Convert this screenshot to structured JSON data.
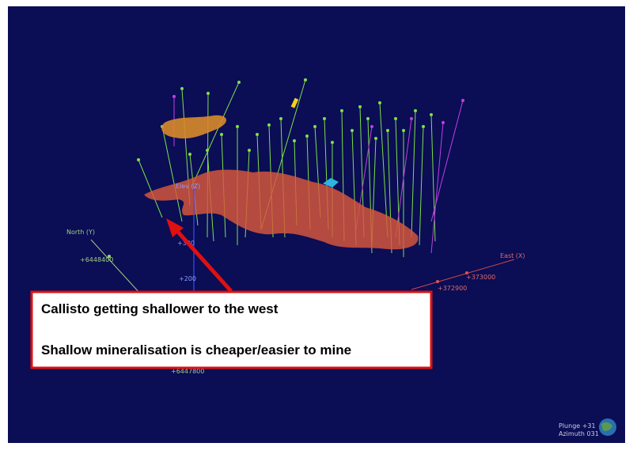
{
  "axes": {
    "north": {
      "name": "North (Y)",
      "ticks": [
        "+6448400",
        "+6447800"
      ]
    },
    "elevation": {
      "name": "Elev (Z)",
      "ticks": [
        "+300",
        "+200"
      ]
    },
    "east": {
      "name": "East (X)",
      "ticks": [
        "+373000",
        "+372900"
      ]
    }
  },
  "callout": {
    "line1": "Callisto getting shallower to the west",
    "line2": "Shallow mineralisation is cheaper/easier to mine"
  },
  "orientation": {
    "plunge": "Plunge +31",
    "azimuth": "Azimuth 031"
  }
}
